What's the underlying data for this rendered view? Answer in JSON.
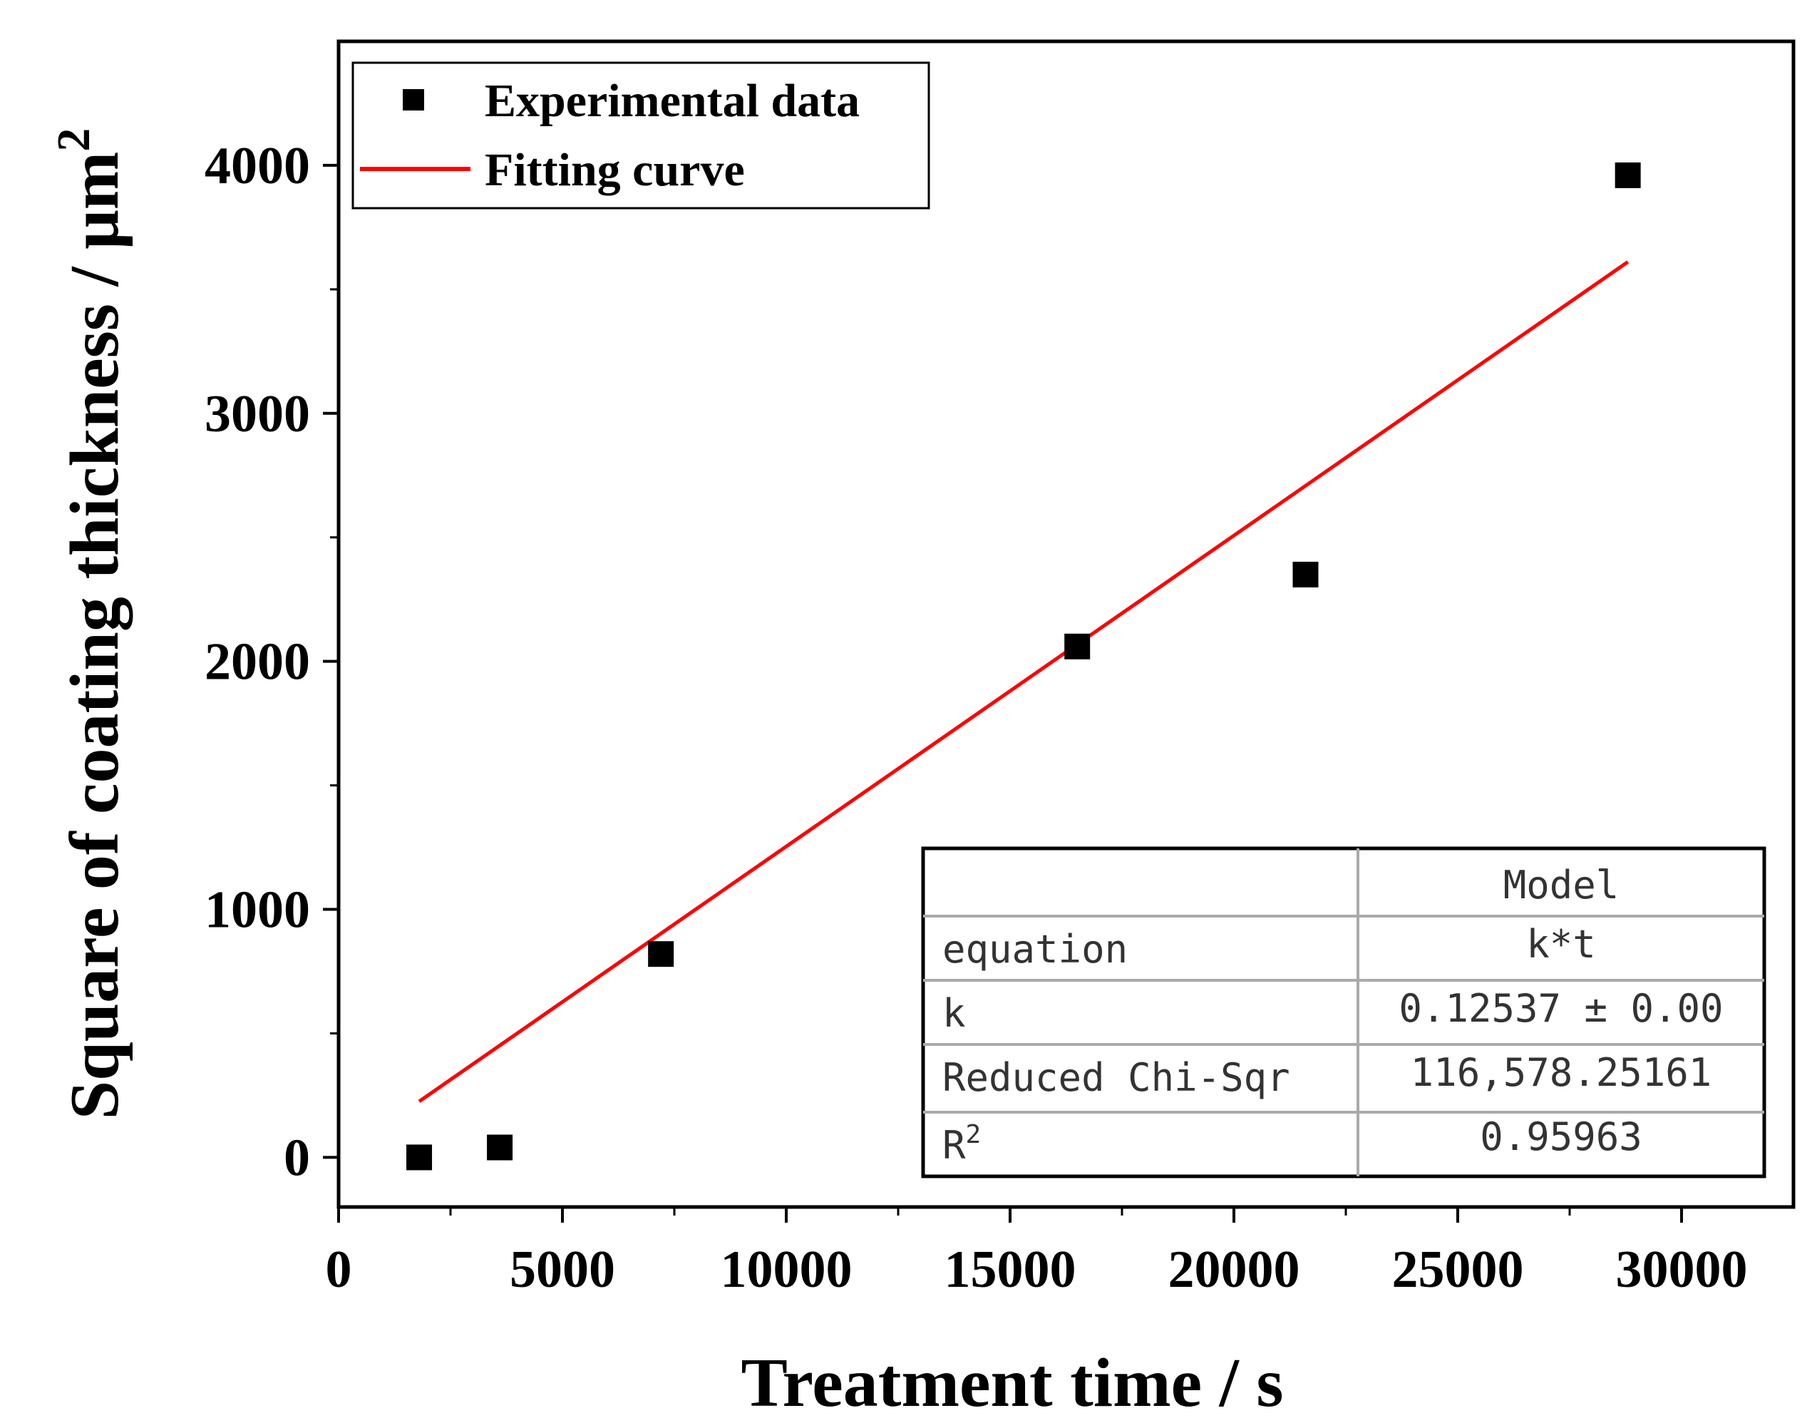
{
  "chart_data": {
    "type": "scatter",
    "xlabel": "Treatment time / s",
    "ylabel": "Square of coating thickness / μm",
    "ylabel_sup": "2",
    "xlim": [
      0,
      32500
    ],
    "ylim": [
      -200,
      4500
    ],
    "x_ticks": [
      0,
      5000,
      10000,
      15000,
      20000,
      25000,
      30000
    ],
    "x_tick_labels": [
      "0",
      "5000",
      "10000",
      "15000",
      "20000",
      "25000",
      "30000"
    ],
    "y_ticks": [
      0,
      1000,
      2000,
      3000,
      4000
    ],
    "y_tick_labels": [
      "0",
      "1000",
      "2000",
      "3000",
      "4000"
    ],
    "series": [
      {
        "name": "Experimental data",
        "kind": "scatter",
        "color": "#000000",
        "marker": "square",
        "x": [
          1800,
          3600,
          7200,
          16500,
          21600,
          28800
        ],
        "y": [
          0,
          40,
          820,
          2060,
          2350,
          3960
        ]
      },
      {
        "name": "Fitting curve",
        "kind": "line",
        "color": "#ff0000",
        "x": [
          1800,
          28800
        ],
        "y": [
          225.7,
          3610.7
        ]
      }
    ],
    "legend": {
      "placement": "top-left",
      "entries": [
        "Experimental data",
        "Fitting curve"
      ]
    },
    "fit_table": {
      "header": [
        "",
        "Model"
      ],
      "rows": [
        [
          "equation",
          "k*t"
        ],
        [
          "k",
          "0.12537 ± 0.00"
        ],
        [
          "Reduced Chi-Sqr",
          "116,578.25161"
        ],
        [
          "R",
          "0.95963"
        ]
      ],
      "r_sup": "2",
      "placement": "bottom-right"
    }
  }
}
